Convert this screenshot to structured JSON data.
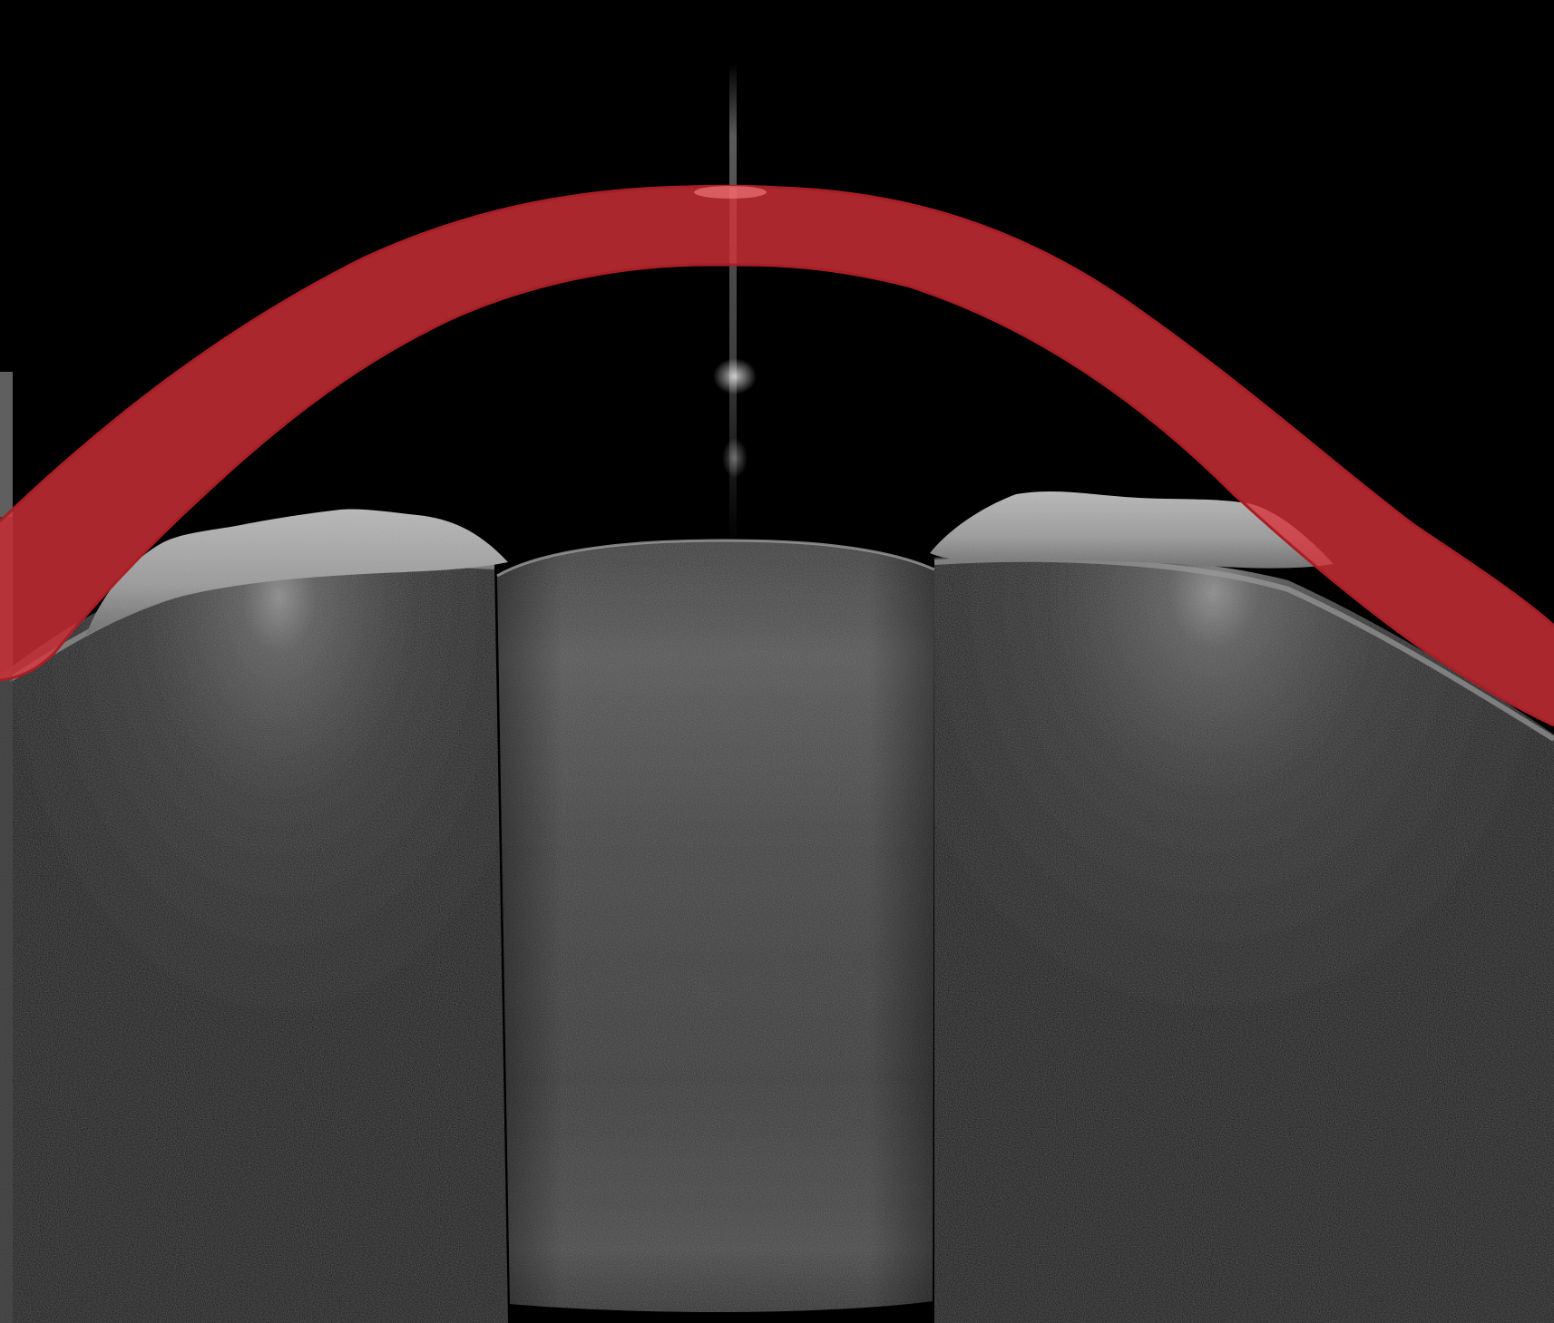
{
  "image": {
    "kind": "anterior-segment OCT cross-section with segmentation overlay",
    "background_color": "#000000",
    "tissue_color": "#8f8f8f",
    "overlay_color": "#d8323a",
    "overlay_opacity": 0.78,
    "visible_text": []
  }
}
